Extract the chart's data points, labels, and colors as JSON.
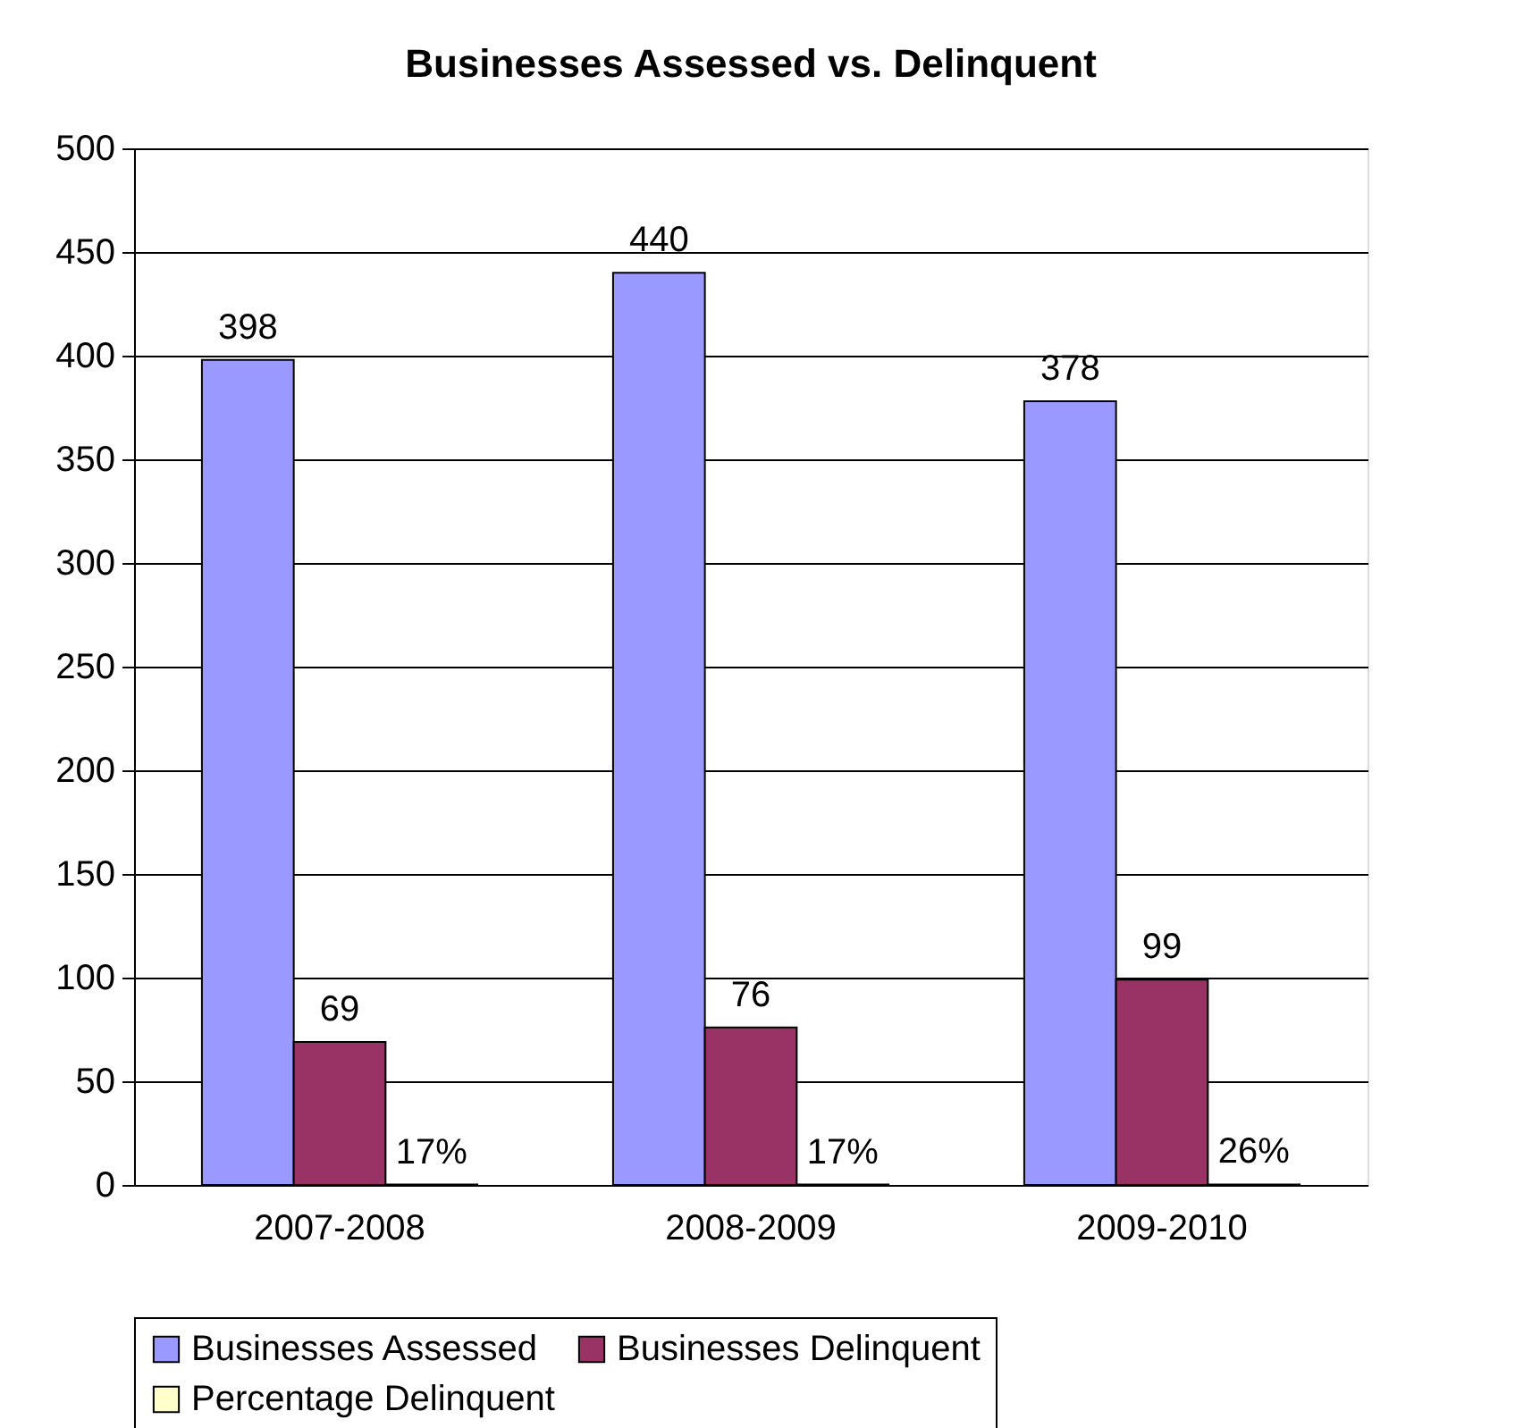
{
  "chart_data": {
    "type": "bar",
    "title": "Businesses Assessed vs. Delinquent",
    "categories": [
      "2007-2008",
      "2008-2009",
      "2009-2010"
    ],
    "series": [
      {
        "name": "Businesses Assessed",
        "color": "#9999ff",
        "values": [
          398,
          440,
          378
        ],
        "value_labels": [
          "398",
          "440",
          "378"
        ]
      },
      {
        "name": "Businesses Delinquent",
        "color": "#993366",
        "values": [
          69,
          76,
          99
        ],
        "value_labels": [
          "69",
          "76",
          "99"
        ]
      },
      {
        "name": "Percentage Delinquent",
        "color": "#ffffcc",
        "values": [
          0.17,
          0.17,
          0.26
        ],
        "value_labels": [
          "17%",
          "17%",
          "26%"
        ]
      }
    ],
    "ylim": [
      0,
      500
    ],
    "yticks": [
      0,
      50,
      100,
      150,
      200,
      250,
      300,
      350,
      400,
      450,
      500
    ],
    "grid": "y",
    "legend": "bottom"
  }
}
